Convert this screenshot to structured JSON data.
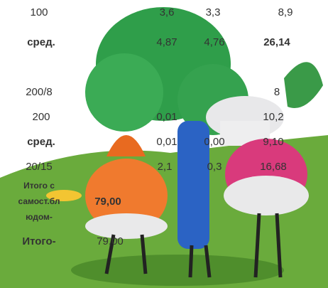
{
  "table": {
    "rows": [
      [
        "100",
        "3,6",
        "3,3",
        "8,9"
      ],
      [
        "сред.",
        "4,87",
        "4,76",
        "26,14"
      ],
      [
        "200/8",
        null,
        null,
        "8"
      ],
      [
        "200",
        "0,01",
        null,
        "10,2"
      ],
      [
        "сред.",
        "0,01",
        "0,00",
        "9,10"
      ],
      [
        "20/15",
        "2,1",
        "0,3",
        "16,68"
      ]
    ]
  },
  "totals": [
    {
      "label": [
        "Итого с",
        "самост.бл",
        "юдом-"
      ],
      "value": "79,00"
    },
    {
      "label": [
        "Итого-"
      ],
      "value": "79,00"
    }
  ]
}
